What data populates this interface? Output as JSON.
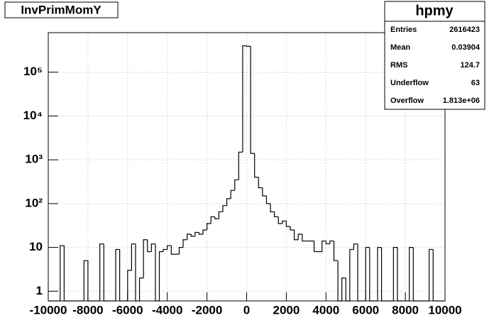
{
  "chart_data": {
    "type": "histogram",
    "title": "InvPrimMomY",
    "bins": [
      -10000,
      -9800,
      -9600,
      -9400,
      -9200,
      -9000,
      -8800,
      -8600,
      -8400,
      -8200,
      -8000,
      -7800,
      -7600,
      -7400,
      -7200,
      -7000,
      -6800,
      -6600,
      -6400,
      -6200,
      -6000,
      -5800,
      -5600,
      -5400,
      -5200,
      -5000,
      -4800,
      -4600,
      -4400,
      -4200,
      -4000,
      -3800,
      -3600,
      -3400,
      -3200,
      -3000,
      -2800,
      -2600,
      -2400,
      -2200,
      -2000,
      -1800,
      -1600,
      -1400,
      -1200,
      -1000,
      -800,
      -600,
      -400,
      -200,
      0,
      200,
      400,
      600,
      800,
      1000,
      1200,
      1400,
      1600,
      1800,
      2000,
      2200,
      2400,
      2600,
      2800,
      3000,
      3200,
      3400,
      3600,
      3800,
      4000,
      4200,
      4400,
      4600,
      4800,
      5000,
      5200,
      5400,
      5600,
      5800,
      6000,
      6200,
      6400,
      6600,
      6800,
      7000,
      7200,
      7400,
      7600,
      7800,
      8000,
      8200,
      8400,
      8600,
      8800,
      9000,
      9200,
      9400,
      9600,
      9800,
      10000
    ],
    "values": [
      0,
      0,
      0,
      11,
      0,
      0,
      0,
      0,
      0,
      5,
      0,
      0,
      0,
      12,
      0,
      0,
      0,
      9,
      0,
      0,
      3,
      12,
      0,
      2,
      15,
      8,
      12,
      0,
      8,
      9,
      11,
      7,
      7,
      10,
      15,
      20,
      18,
      22,
      20,
      25,
      35,
      50,
      45,
      65,
      90,
      130,
      200,
      350,
      1500,
      400000,
      390000,
      1400,
      400,
      230,
      150,
      100,
      65,
      50,
      35,
      40,
      30,
      25,
      15,
      20,
      14,
      14,
      14,
      8,
      8,
      14,
      12,
      14,
      5,
      0,
      2,
      0,
      9,
      12,
      0,
      0,
      10,
      0,
      0,
      10,
      0,
      0,
      0,
      10,
      0,
      0,
      0,
      10,
      0,
      0,
      0,
      0,
      9,
      0,
      0,
      0
    ],
    "color": "#000000",
    "log_y": true,
    "grid": true,
    "xlim": [
      -10000,
      10000
    ],
    "xticks": [
      -10000,
      -8000,
      -6000,
      -4000,
      -2000,
      0,
      2000,
      4000,
      6000,
      8000,
      10000
    ],
    "ylim": [
      0.6,
      800000
    ],
    "yticks": [
      1,
      10,
      {
        "value": 100,
        "label": "10²"
      },
      {
        "value": 1000,
        "label": "10³"
      },
      {
        "value": 10000,
        "label": "10⁴"
      },
      {
        "value": 100000,
        "label": "10⁵"
      }
    ],
    "stats": {
      "title": "hpmy",
      "rows": [
        [
          "Entries",
          "2616423"
        ],
        [
          "Mean",
          "0.03904"
        ],
        [
          "RMS",
          "124.7"
        ],
        [
          "Underflow",
          "63"
        ],
        [
          "Overflow",
          "1.813e+06"
        ]
      ]
    }
  }
}
